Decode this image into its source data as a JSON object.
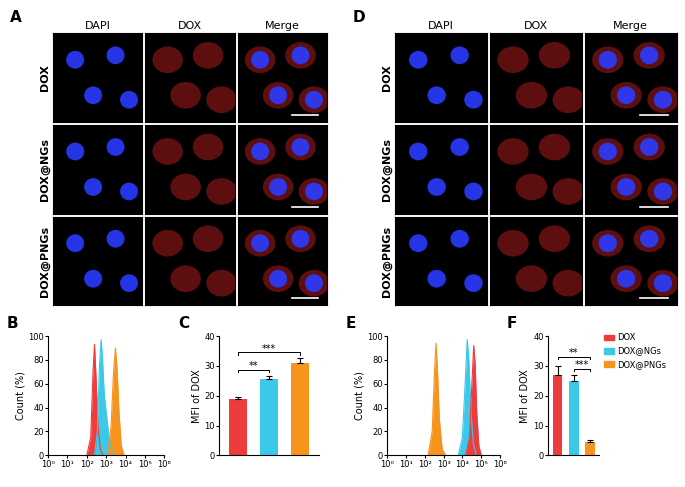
{
  "image_panels": [
    {
      "panel": "A",
      "columns": [
        "DAPI",
        "DOX",
        "Merge"
      ],
      "rows": [
        "DOX",
        "DOX@NGs",
        "DOX@PNGs"
      ]
    },
    {
      "panel": "D",
      "columns": [
        "DAPI",
        "DOX",
        "Merge"
      ],
      "rows": [
        "DOX",
        "DOX@NGs",
        "DOX@PNGs"
      ]
    }
  ],
  "chart_data": [
    {
      "panel": "B",
      "type": "line",
      "y_label": "Count (%)",
      "log": "x",
      "xlim": [
        1,
        1000000
      ],
      "xticks": [
        {
          "value": 1,
          "label": "10⁰"
        },
        {
          "value": 10,
          "label": "10¹"
        },
        {
          "value": 100,
          "label": "10²"
        },
        {
          "value": 1000,
          "label": "10³"
        },
        {
          "value": 10000,
          "label": "10⁴"
        },
        {
          "value": 100000,
          "label": "10⁵"
        },
        {
          "value": 1000000,
          "label": "10⁶"
        }
      ],
      "ylim": [
        0,
        100
      ],
      "yticks": [
        0,
        20,
        40,
        60,
        80,
        100
      ],
      "series": [
        {
          "color": "#ee3b3b",
          "x": [
            100,
            160,
            210,
            250,
            300,
            380,
            500,
            700
          ],
          "values": [
            0,
            15,
            70,
            93,
            65,
            25,
            5,
            0
          ]
        },
        {
          "color": "#3cc8e8",
          "x": [
            250,
            350,
            450,
            550,
            650,
            800,
            1100,
            1600,
            2500
          ],
          "values": [
            0,
            20,
            75,
            97,
            80,
            50,
            30,
            8,
            0
          ]
        },
        {
          "color": "#f7941d",
          "x": [
            1200,
            1800,
            2400,
            3000,
            3700,
            4600,
            6000,
            8500
          ],
          "values": [
            0,
            25,
            70,
            90,
            70,
            35,
            8,
            0
          ]
        }
      ]
    },
    {
      "panel": "C",
      "type": "bar",
      "y_label": "MFI of DOX",
      "categories": [
        "DOX",
        "DOX@NGs",
        "DOX@PNGs"
      ],
      "values": [
        19,
        25.5,
        31
      ],
      "errors": [
        0.6,
        1.2,
        1.5
      ],
      "colors": [
        "#ee3b3b",
        "#3cc8e8",
        "#f7941d"
      ],
      "ylim": [
        0,
        40
      ],
      "yticks": [
        0,
        10,
        20,
        30,
        40
      ],
      "tick_labels": "y",
      "annotations": [
        {
          "text": "**",
          "between": [
            "DOX",
            "DOX@NGs"
          ]
        },
        {
          "text": "***",
          "between": [
            "DOX",
            "DOX@PNGs"
          ]
        }
      ]
    },
    {
      "panel": "E",
      "type": "line",
      "y_label": "Count (%)",
      "log": "x",
      "xlim": [
        1,
        1000000
      ],
      "xticks": [
        {
          "value": 1,
          "label": "10⁰"
        },
        {
          "value": 10,
          "label": "10¹"
        },
        {
          "value": 100,
          "label": "10²"
        },
        {
          "value": 1000,
          "label": "10³"
        },
        {
          "value": 10000,
          "label": "10⁴"
        },
        {
          "value": 100000,
          "label": "10⁵"
        },
        {
          "value": 1000000,
          "label": "10⁶"
        }
      ],
      "ylim": [
        0,
        100
      ],
      "yticks": [
        0,
        20,
        40,
        60,
        80,
        100
      ],
      "series": [
        {
          "color": "#f7941d",
          "x": [
            150,
            250,
            330,
            400,
            480,
            600,
            850,
            1300
          ],
          "values": [
            0,
            20,
            70,
            94,
            70,
            30,
            5,
            0
          ]
        },
        {
          "color": "#3cc8e8",
          "x": [
            6000,
            10000,
            14000,
            18000,
            22000,
            28000,
            38000,
            55000
          ],
          "values": [
            0,
            15,
            60,
            97,
            80,
            40,
            10,
            0
          ]
        },
        {
          "color": "#ee3b3b",
          "x": [
            15000,
            24000,
            32000,
            40000,
            48000,
            58000,
            75000,
            100000
          ],
          "values": [
            0,
            15,
            60,
            92,
            75,
            35,
            8,
            0
          ]
        }
      ]
    },
    {
      "panel": "F",
      "type": "bar",
      "y_label": "MFI of DOX",
      "categories": [
        "DOX",
        "DOX@NGs",
        "DOX@PNGs"
      ],
      "values": [
        27,
        25,
        4.5
      ],
      "errors": [
        3,
        2,
        0.6
      ],
      "colors": [
        "#ee3b3b",
        "#3cc8e8",
        "#f7941d"
      ],
      "ylim": [
        0,
        40
      ],
      "yticks": [
        0,
        10,
        20,
        30,
        40
      ],
      "tick_labels": "y",
      "legend": "upper left",
      "annotations": [
        {
          "text": "***",
          "between": [
            "DOX@NGs",
            "DOX@PNGs"
          ]
        },
        {
          "text": "**",
          "between": [
            "DOX",
            "DOX@PNGs"
          ]
        }
      ]
    }
  ]
}
